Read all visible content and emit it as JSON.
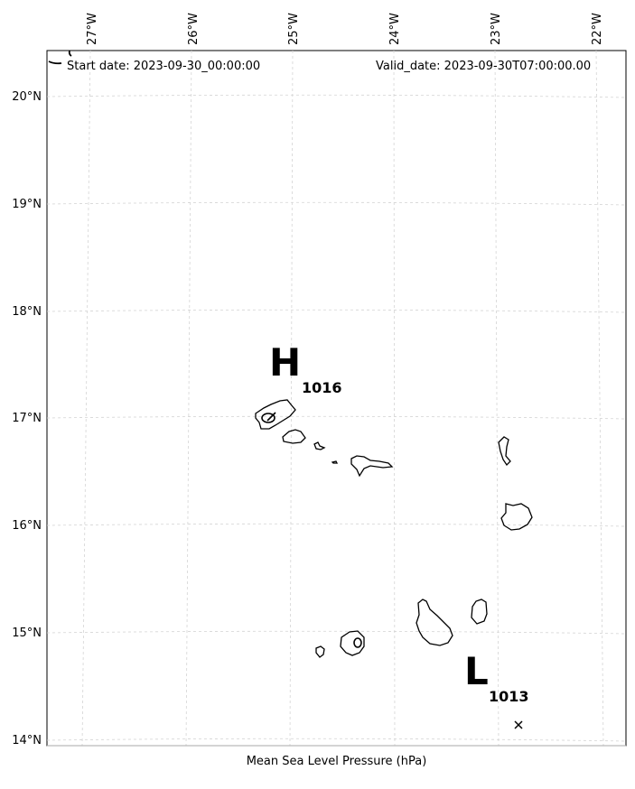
{
  "header": {
    "start_date": "Start date: 2023-09-30_00:00:00",
    "valid_date": "Valid_date: 2023-09-30T07:00:00.00"
  },
  "axes": {
    "longitude_ticks": [
      "27°W",
      "26°W",
      "25°W",
      "24°W",
      "23°W",
      "22°W"
    ],
    "latitude_ticks": [
      "20°N",
      "19°N",
      "18°N",
      "17°N",
      "16°N",
      "15°N",
      "14°N"
    ],
    "gridlines": true
  },
  "pressure_systems": {
    "high": {
      "letter": "H",
      "value": "1016"
    },
    "low": {
      "letter": "L",
      "value": "1013"
    }
  },
  "caption": "Mean Sea Level Pressure (hPa)",
  "colors": {
    "coastline": "#000000",
    "grid": "#d0d0d0",
    "frame": "#000000"
  }
}
